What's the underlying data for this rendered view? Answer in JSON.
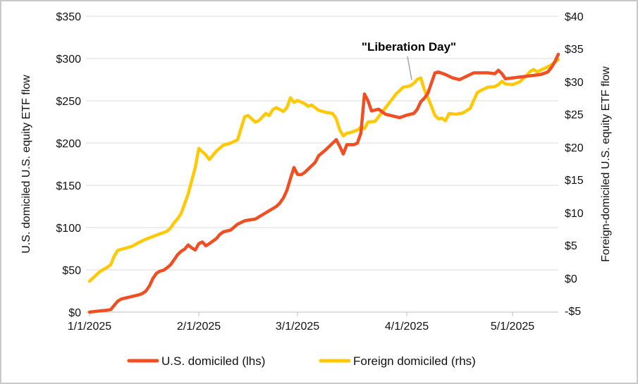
{
  "chart_data": {
    "type": "line",
    "title": "",
    "x_axis": {
      "tick_labels": [
        "1/1/2025",
        "2/1/2025",
        "3/1/2025",
        "4/1/2025",
        "5/1/2025"
      ],
      "tick_days": [
        0,
        31,
        59,
        90,
        120
      ],
      "range_days": [
        0,
        133
      ],
      "unit": "days since 1/1/2025"
    },
    "left_axis": {
      "title": "U.S. domiciled U.S. equity ETF flow",
      "ticks": [
        "$350",
        "$300",
        "$250",
        "$200",
        "$150",
        "$100",
        "$50",
        "$0"
      ],
      "min": 0,
      "max": 350
    },
    "right_axis": {
      "title": "Foreign-domiciled U.S. equity ETF flow",
      "ticks": [
        "$40",
        "$35",
        "$30",
        "$25",
        "$20",
        "$15",
        "$10",
        "$5",
        "$0",
        "-$5"
      ],
      "min": -5,
      "max": 40
    },
    "annotation": {
      "text": "\"Liberation Day\"",
      "leader_day": 91.4,
      "leader_value_rhs": 30.3
    },
    "legend": [
      {
        "label": "U.S. domiciled (lhs)",
        "color": "#F04E23"
      },
      {
        "label": "Foreign domiciled (rhs)",
        "color": "#FFC907"
      }
    ],
    "colors": {
      "us_line": "#F04E23",
      "foreign_line": "#FFC907",
      "gridline": "#D9D9D9",
      "leader": "#A6A6A6",
      "text": "#111111"
    },
    "series": [
      {
        "name": "U.S. domiciled (lhs)",
        "axis": "left",
        "color": "#F04E23",
        "points": [
          [
            0,
            0
          ],
          [
            1,
            0.5
          ],
          [
            3,
            1.5
          ],
          [
            5,
            2.3
          ],
          [
            6,
            3
          ],
          [
            7,
            8
          ],
          [
            8,
            13
          ],
          [
            9,
            15.5
          ],
          [
            10,
            16.5
          ],
          [
            12,
            18.5
          ],
          [
            14,
            20.5
          ],
          [
            15,
            22
          ],
          [
            16,
            25
          ],
          [
            17,
            31
          ],
          [
            18,
            40
          ],
          [
            19,
            46
          ],
          [
            20,
            48.5
          ],
          [
            21,
            49.5
          ],
          [
            22,
            52.5
          ],
          [
            23,
            56
          ],
          [
            24,
            62
          ],
          [
            25,
            68
          ],
          [
            26,
            72
          ],
          [
            27,
            74.5
          ],
          [
            28,
            79.5
          ],
          [
            29,
            76
          ],
          [
            30,
            73.5
          ],
          [
            31,
            81
          ],
          [
            32,
            83
          ],
          [
            33,
            78.5
          ],
          [
            34,
            81
          ],
          [
            36,
            87
          ],
          [
            37,
            92
          ],
          [
            38,
            95
          ],
          [
            40,
            97
          ],
          [
            42,
            104
          ],
          [
            44,
            108
          ],
          [
            46,
            109.5
          ],
          [
            47,
            110
          ],
          [
            49,
            115
          ],
          [
            51,
            120
          ],
          [
            53,
            125
          ],
          [
            54,
            129
          ],
          [
            55,
            135
          ],
          [
            56,
            144
          ],
          [
            57,
            158
          ],
          [
            58,
            171
          ],
          [
            59,
            163
          ],
          [
            60,
            162.5
          ],
          [
            61,
            165
          ],
          [
            63,
            173
          ],
          [
            64,
            177
          ],
          [
            65,
            185
          ],
          [
            67,
            192
          ],
          [
            69,
            200
          ],
          [
            70,
            204
          ],
          [
            71,
            196
          ],
          [
            72,
            187
          ],
          [
            73,
            198
          ],
          [
            75,
            198
          ],
          [
            76,
            200
          ],
          [
            77,
            212
          ],
          [
            78,
            258
          ],
          [
            79,
            250
          ],
          [
            80,
            238
          ],
          [
            82,
            240
          ],
          [
            84,
            234
          ],
          [
            86,
            232
          ],
          [
            88,
            230
          ],
          [
            90,
            233
          ],
          [
            92,
            235
          ],
          [
            93,
            240
          ],
          [
            94,
            249
          ],
          [
            95,
            253
          ],
          [
            96,
            259
          ],
          [
            97,
            271
          ],
          [
            98,
            283
          ],
          [
            99,
            284
          ],
          [
            101,
            281
          ],
          [
            103,
            277
          ],
          [
            105,
            275
          ],
          [
            107,
            279
          ],
          [
            109,
            283
          ],
          [
            111,
            283
          ],
          [
            113,
            283
          ],
          [
            115,
            282
          ],
          [
            116,
            286
          ],
          [
            117,
            282
          ],
          [
            118,
            276
          ],
          [
            120,
            277
          ],
          [
            122,
            278
          ],
          [
            124,
            279
          ],
          [
            126,
            280
          ],
          [
            128,
            281
          ],
          [
            130,
            284
          ],
          [
            131,
            289
          ],
          [
            132,
            296
          ],
          [
            133,
            305
          ]
        ]
      },
      {
        "name": "Foreign domiciled (rhs)",
        "axis": "right",
        "color": "#FFC907",
        "points": [
          [
            0,
            -0.3
          ],
          [
            1,
            0.2
          ],
          [
            3,
            1.2
          ],
          [
            5,
            1.8
          ],
          [
            6,
            2.2
          ],
          [
            7,
            3.5
          ],
          [
            8,
            4.4
          ],
          [
            10,
            4.7
          ],
          [
            12,
            5
          ],
          [
            14,
            5.6
          ],
          [
            16,
            6.1
          ],
          [
            18,
            6.5
          ],
          [
            20,
            6.9
          ],
          [
            21,
            7.1
          ],
          [
            22,
            7.3
          ],
          [
            23,
            7.8
          ],
          [
            24,
            8.6
          ],
          [
            25,
            9.2
          ],
          [
            26,
            10
          ],
          [
            27,
            11.5
          ],
          [
            28,
            13
          ],
          [
            29,
            15
          ],
          [
            30,
            17
          ],
          [
            31,
            19.9
          ],
          [
            33,
            18.9
          ],
          [
            34,
            18.2
          ],
          [
            36,
            19.5
          ],
          [
            38,
            20.4
          ],
          [
            40,
            20.7
          ],
          [
            42,
            21.2
          ],
          [
            44,
            24.7
          ],
          [
            45,
            24.9
          ],
          [
            47,
            23.9
          ],
          [
            48,
            24.1
          ],
          [
            50,
            25.2
          ],
          [
            51,
            24.9
          ],
          [
            52,
            25.8
          ],
          [
            53,
            26.1
          ],
          [
            55,
            25.5
          ],
          [
            56,
            26.1
          ],
          [
            57,
            27.6
          ],
          [
            58,
            26.9
          ],
          [
            59,
            27.2
          ],
          [
            61,
            26.7
          ],
          [
            62,
            26.3
          ],
          [
            63,
            26.5
          ],
          [
            65,
            25.7
          ],
          [
            67,
            25.4
          ],
          [
            69,
            25.2
          ],
          [
            70,
            24.4
          ],
          [
            71,
            22.7
          ],
          [
            72,
            21.8
          ],
          [
            73,
            22.2
          ],
          [
            74,
            22.3
          ],
          [
            76,
            22.7
          ],
          [
            77,
            23.1
          ],
          [
            78,
            22.9
          ],
          [
            79,
            23.9
          ],
          [
            81,
            24
          ],
          [
            83,
            25.4
          ],
          [
            85,
            26.8
          ],
          [
            87,
            28.2
          ],
          [
            89,
            29.2
          ],
          [
            91,
            29.4
          ],
          [
            92,
            29.8
          ],
          [
            93,
            30.4
          ],
          [
            94,
            30.6
          ],
          [
            95,
            28.8
          ],
          [
            96,
            27.6
          ],
          [
            97,
            26.3
          ],
          [
            98,
            24.9
          ],
          [
            99,
            24.4
          ],
          [
            100,
            24.5
          ],
          [
            101,
            24.1
          ],
          [
            102,
            25.2
          ],
          [
            104,
            25.1
          ],
          [
            106,
            25.3
          ],
          [
            108,
            26
          ],
          [
            109,
            27.2
          ],
          [
            110,
            28.4
          ],
          [
            111,
            28.7
          ],
          [
            113,
            29.2
          ],
          [
            115,
            29.3
          ],
          [
            116,
            29.6
          ],
          [
            117,
            30.1
          ],
          [
            118,
            29.7
          ],
          [
            120,
            29.6
          ],
          [
            122,
            30
          ],
          [
            124,
            31
          ],
          [
            125,
            31.6
          ],
          [
            126,
            31.9
          ],
          [
            127,
            31.5
          ],
          [
            128,
            31.8
          ],
          [
            130,
            32.3
          ],
          [
            131,
            32.6
          ],
          [
            132,
            33
          ],
          [
            133,
            33.4
          ]
        ]
      }
    ]
  }
}
